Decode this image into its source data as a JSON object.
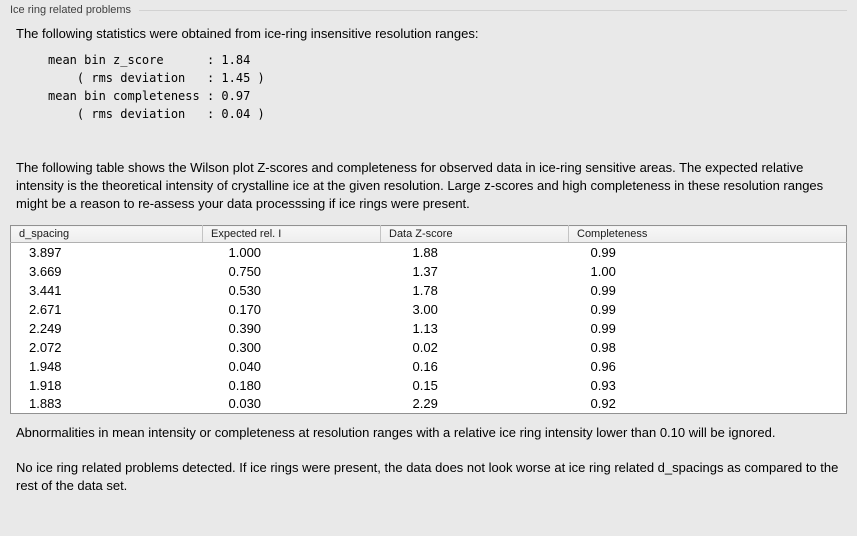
{
  "panel": {
    "title": "Ice ring related problems"
  },
  "intro": "The following statistics were obtained from ice-ring insensitive resolution ranges:",
  "stats": {
    "lines": [
      "mean bin z_score      : 1.84",
      "    ( rms deviation   : 1.45 )",
      "mean bin completeness : 0.97",
      "    ( rms deviation   : 0.04 )"
    ]
  },
  "description": "The following table shows the Wilson plot Z-scores and completeness for observed data in ice-ring sensitive areas. The expected relative intensity is the theoretical intensity of crystalline ice at the given resolution. Large z-scores and high completeness in these resolution ranges might be a reason to re-assess your data processsing if ice rings were present.",
  "table": {
    "headers": [
      "d_spacing",
      "Expected rel. I",
      "Data Z-score",
      "Completeness"
    ],
    "rows": [
      [
        "3.897",
        "1.000",
        "1.88",
        "0.99"
      ],
      [
        "3.669",
        "0.750",
        "1.37",
        "1.00"
      ],
      [
        "3.441",
        "0.530",
        "1.78",
        "0.99"
      ],
      [
        "2.671",
        "0.170",
        "3.00",
        "0.99"
      ],
      [
        "2.249",
        "0.390",
        "1.13",
        "0.99"
      ],
      [
        "2.072",
        "0.300",
        "0.02",
        "0.98"
      ],
      [
        "1.948",
        "0.040",
        "0.16",
        "0.96"
      ],
      [
        "1.918",
        "0.180",
        "0.15",
        "0.93"
      ],
      [
        "1.883",
        "0.030",
        "2.29",
        "0.92"
      ]
    ]
  },
  "note": "Abnormalities in mean intensity or completeness at resolution ranges with a relative ice ring intensity lower than 0.10 will be ignored.",
  "conclusion": "No ice ring related problems detected. If ice rings were present, the data does not look worse at ice ring related d_spacings as compared to the rest of the data set."
}
